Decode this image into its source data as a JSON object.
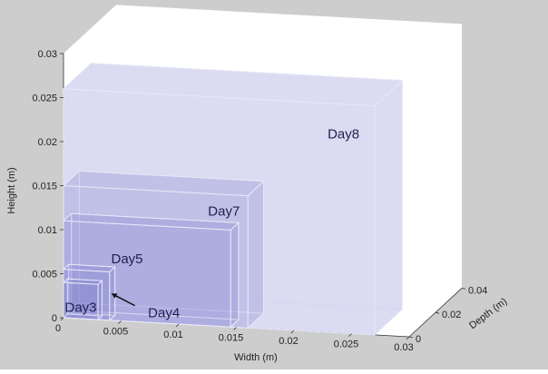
{
  "chart_data": {
    "type": "3d-box",
    "title": "",
    "xlabel": "Width (m)",
    "ylabel": "Depth (m)",
    "zlabel": "Height (m)",
    "xlim": [
      0,
      0.03
    ],
    "ylim": [
      0,
      0.04
    ],
    "zlim": [
      0,
      0.03
    ],
    "x_ticks": [
      "0",
      "0.005",
      "0.01",
      "0.015",
      "0.02",
      "0.025",
      "0.03"
    ],
    "y_ticks": [
      "0",
      "0.02",
      "0.04"
    ],
    "z_ticks": [
      "0",
      "0.005",
      "0.01",
      "0.015",
      "0.02",
      "0.025",
      "0.03"
    ],
    "boxes": [
      {
        "name": "Day3",
        "width": 0.003,
        "depth": 0.003,
        "height": 0.004
      },
      {
        "name": "Day4",
        "width": 0.004,
        "depth": 0.004,
        "height": 0.0055
      },
      {
        "name": "Day5",
        "width": 0.0145,
        "depth": 0.006,
        "height": 0.011
      },
      {
        "name": "Day7",
        "width": 0.016,
        "depth": 0.012,
        "height": 0.015
      },
      {
        "name": "Day8",
        "width": 0.027,
        "depth": 0.021,
        "height": 0.026
      }
    ],
    "colors": {
      "figure_background": "#cdcdcd",
      "pane_background": "#ffffff",
      "box_fill": "#7a78cc",
      "box_edge": "#e8e8f8",
      "label_text": "#1f1f4f"
    }
  }
}
